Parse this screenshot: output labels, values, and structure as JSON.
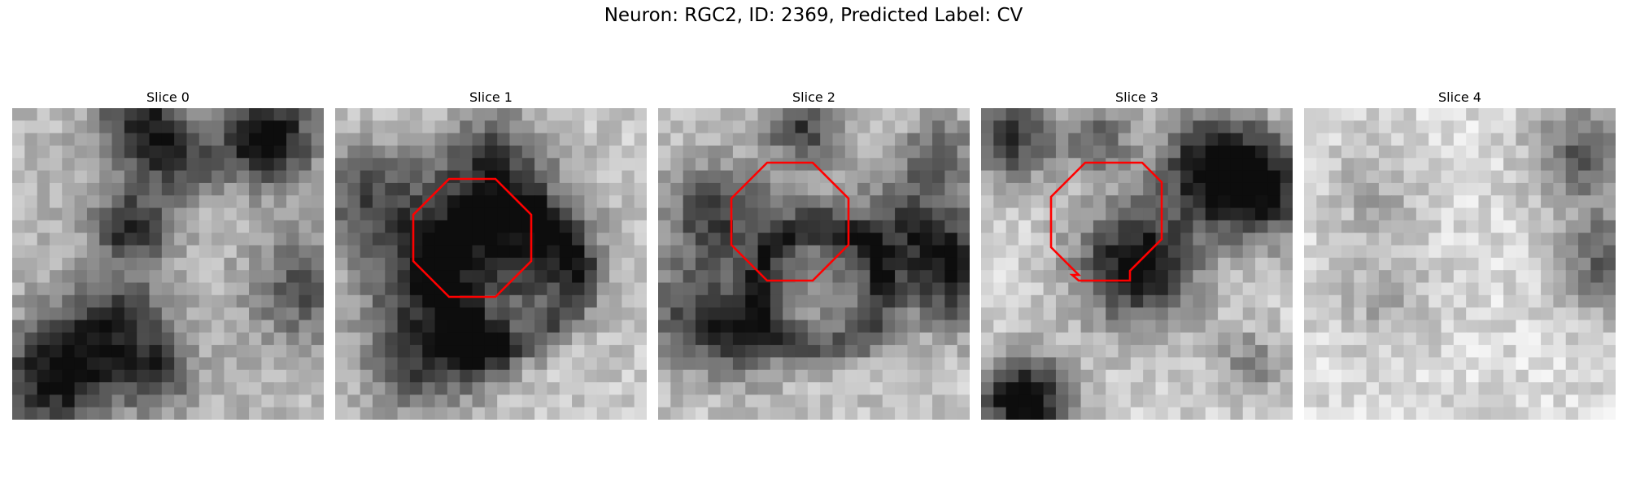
{
  "figure": {
    "title": "Neuron: RGC2, ID: 2369, Predicted Label: CV"
  },
  "slices": [
    {
      "title": "Slice 0",
      "has_outline": false
    },
    {
      "title": "Slice 1",
      "has_outline": true
    },
    {
      "title": "Slice 2",
      "has_outline": true
    },
    {
      "title": "Slice 3",
      "has_outline": true
    },
    {
      "title": "Slice 4",
      "has_outline": false
    }
  ],
  "colors": {
    "outline": "#ff0000",
    "colormap": "gray"
  }
}
